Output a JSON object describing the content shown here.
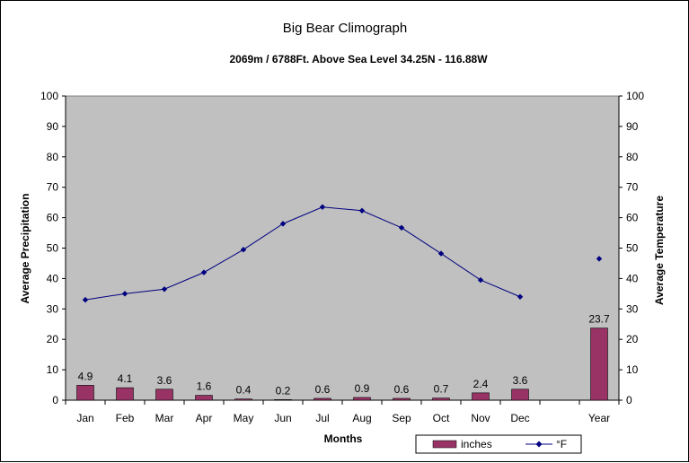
{
  "chart_data": {
    "type": "bar+line",
    "title": "Big Bear Climograph",
    "subtitle": "2069m / 6788Ft. Above Sea Level 34.25N - 116.88W",
    "xlabel": "Months",
    "ylabel_left": "Average Precipitation",
    "ylabel_right": "Average Temperature",
    "categories": [
      "Jan",
      "Feb",
      "Mar",
      "Apr",
      "May",
      "Jun",
      "Jul",
      "Aug",
      "Sep",
      "Oct",
      "Nov",
      "Dec",
      "",
      "Year"
    ],
    "ylim": [
      0,
      100
    ],
    "yticks": [
      "0",
      "10",
      "20",
      "30",
      "40",
      "50",
      "60",
      "70",
      "80",
      "90",
      "100"
    ],
    "grid": false,
    "plot_background": "#c0c0c0",
    "legend_position": "bottom-right",
    "series": [
      {
        "name": "inches",
        "type": "bar",
        "color": "#993366",
        "values": [
          4.9,
          4.1,
          3.6,
          1.6,
          0.4,
          0.2,
          0.6,
          0.9,
          0.6,
          0.7,
          2.4,
          3.6,
          null,
          23.7
        ],
        "labels": [
          "4.9",
          "4.1",
          "3.6",
          "1.6",
          "0.4",
          "0.2",
          "0.6",
          "0.9",
          "0.6",
          "0.7",
          "2.4",
          "3.6",
          "",
          "23.7"
        ]
      },
      {
        "name": "°F",
        "type": "line",
        "color": "#000080",
        "values": [
          33,
          35,
          36.5,
          42,
          49.5,
          58,
          63.5,
          62.3,
          56.7,
          48.2,
          39.5,
          34,
          null,
          46.5
        ]
      }
    ]
  }
}
